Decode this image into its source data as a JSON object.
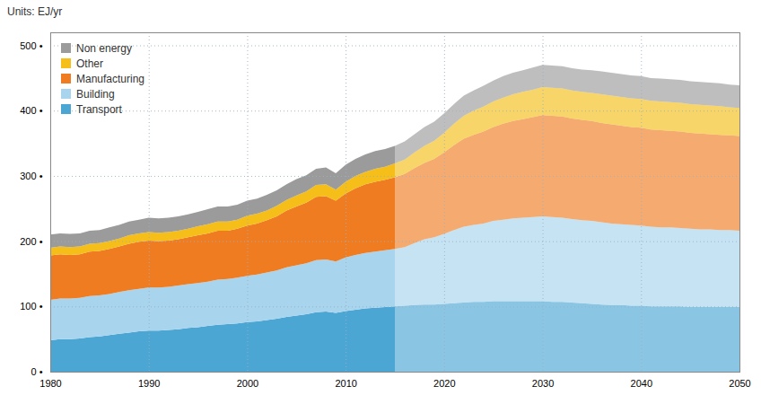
{
  "chart_data": {
    "type": "area",
    "stacked": true,
    "ylabel": "Units: EJ/yr",
    "x": [
      1980,
      1981,
      1982,
      1983,
      1984,
      1985,
      1986,
      1987,
      1988,
      1989,
      1990,
      1991,
      1992,
      1993,
      1994,
      1995,
      1996,
      1997,
      1998,
      1999,
      2000,
      2001,
      2002,
      2003,
      2004,
      2005,
      2006,
      2007,
      2008,
      2009,
      2010,
      2011,
      2012,
      2013,
      2014,
      2015,
      2016,
      2017,
      2018,
      2019,
      2020,
      2021,
      2022,
      2023,
      2024,
      2025,
      2026,
      2027,
      2028,
      2029,
      2030,
      2031,
      2032,
      2033,
      2034,
      2035,
      2036,
      2037,
      2038,
      2039,
      2040,
      2041,
      2042,
      2043,
      2044,
      2045,
      2046,
      2047,
      2048,
      2049,
      2050
    ],
    "series": [
      {
        "name": "Transport",
        "color": "#4BA6D4",
        "values": [
          48,
          50,
          50,
          51,
          53,
          54,
          56,
          58,
          60,
          62,
          63,
          63,
          64,
          65,
          67,
          68,
          70,
          72,
          73,
          74,
          76,
          77,
          79,
          81,
          84,
          86,
          88,
          91,
          92,
          90,
          93,
          95,
          97,
          98,
          99,
          100,
          101,
          102,
          103,
          103,
          104,
          105,
          106,
          107,
          107,
          108,
          108,
          108,
          108,
          108,
          108,
          107,
          107,
          106,
          105,
          104,
          103,
          102,
          102,
          101,
          101,
          100,
          100,
          100,
          100,
          99,
          99,
          99,
          99,
          99,
          99
        ]
      },
      {
        "name": "Building",
        "color": "#A8D4EE",
        "values": [
          62,
          62,
          62,
          62,
          63,
          63,
          63,
          64,
          65,
          65,
          66,
          66,
          66,
          67,
          67,
          68,
          68,
          69,
          69,
          70,
          71,
          72,
          73,
          74,
          76,
          77,
          78,
          80,
          80,
          79,
          82,
          84,
          85,
          86,
          87,
          88,
          90,
          95,
          100,
          103,
          107,
          112,
          116,
          118,
          120,
          123,
          125,
          127,
          128,
          129,
          130,
          130,
          129,
          128,
          127,
          127,
          126,
          125,
          124,
          124,
          123,
          122,
          121,
          121,
          120,
          120,
          119,
          119,
          118,
          118,
          117
        ]
      },
      {
        "name": "Manufacturing",
        "color": "#F07C22",
        "values": [
          68,
          68,
          67,
          67,
          68,
          68,
          69,
          70,
          71,
          72,
          72,
          71,
          71,
          71,
          72,
          73,
          74,
          75,
          74,
          75,
          77,
          78,
          80,
          83,
          87,
          90,
          93,
          97,
          97,
          93,
          98,
          102,
          105,
          107,
          108,
          110,
          112,
          115,
          117,
          120,
          125,
          130,
          135,
          138,
          141,
          144,
          147,
          149,
          151,
          153,
          155,
          155,
          155,
          154,
          154,
          153,
          152,
          152,
          151,
          150,
          150,
          149,
          149,
          148,
          148,
          147,
          147,
          146,
          146,
          145,
          145
        ]
      },
      {
        "name": "Other",
        "color": "#F5BE18",
        "values": [
          12,
          12,
          12,
          12,
          12,
          12,
          12,
          12,
          13,
          13,
          13,
          13,
          13,
          13,
          13,
          14,
          14,
          14,
          14,
          14,
          15,
          15,
          15,
          16,
          16,
          17,
          17,
          18,
          18,
          17,
          18,
          19,
          19,
          20,
          20,
          21,
          22,
          24,
          26,
          28,
          30,
          33,
          35,
          37,
          38,
          39,
          40,
          41,
          42,
          42,
          43,
          43,
          43,
          43,
          43,
          43,
          44,
          44,
          44,
          44,
          44,
          44,
          44,
          44,
          44,
          44,
          44,
          44,
          44,
          43,
          43
        ]
      },
      {
        "name": "Non energy",
        "color": "#9B9B9B",
        "values": [
          20,
          20,
          20,
          20,
          20,
          20,
          21,
          21,
          21,
          21,
          22,
          22,
          22,
          22,
          22,
          22,
          23,
          23,
          23,
          23,
          23,
          23,
          24,
          24,
          24,
          25,
          25,
          25,
          26,
          25,
          26,
          26,
          27,
          27,
          27,
          27,
          28,
          28,
          29,
          29,
          30,
          30,
          31,
          31,
          32,
          32,
          33,
          33,
          33,
          34,
          34,
          34,
          34,
          34,
          34,
          35,
          35,
          35,
          35,
          35,
          35,
          35,
          35,
          35,
          35,
          35,
          35,
          35,
          35,
          35,
          35
        ]
      }
    ],
    "forecast_start": 2015,
    "xlim": [
      1980,
      2050
    ],
    "xticks": [
      1980,
      1990,
      2000,
      2010,
      2020,
      2030,
      2040,
      2050
    ],
    "ylim": [
      0,
      520
    ],
    "yticks": [
      {
        "value": 0,
        "label": "0 •"
      },
      {
        "value": 100,
        "label": "100 •"
      },
      {
        "value": 200,
        "label": "200 •"
      },
      {
        "value": 300,
        "label": "300 •"
      },
      {
        "value": 400,
        "label": "400 •"
      },
      {
        "value": 500,
        "label": "500 •"
      }
    ],
    "grid": true,
    "legend": "upper left"
  }
}
